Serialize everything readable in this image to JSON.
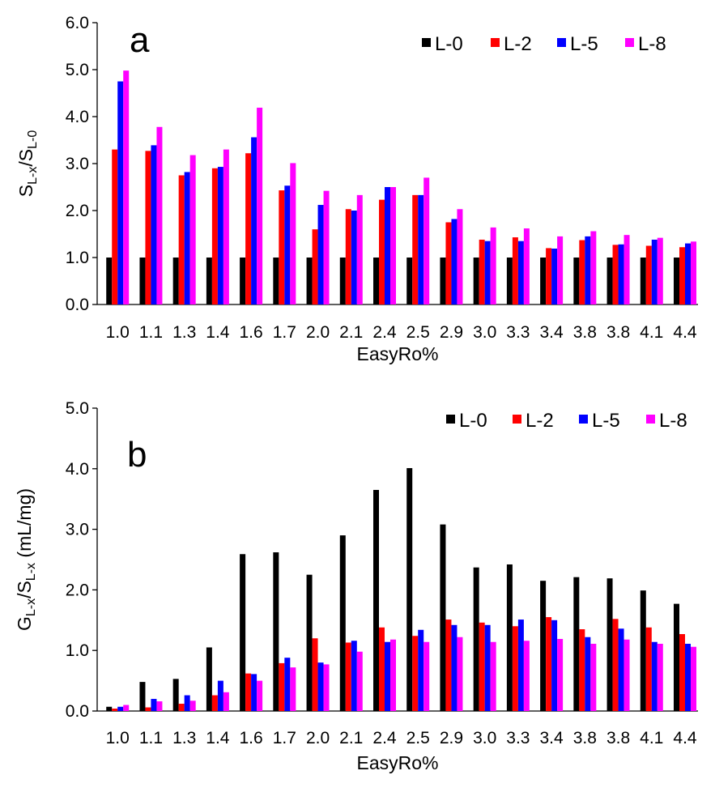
{
  "chart_data": [
    {
      "type": "bar",
      "panel_label": "a",
      "xlabel": "EasyRo%",
      "ylabel": {
        "main": "S",
        "sub1": "L-x",
        "mid": "/S",
        "sub2": "L-0"
      },
      "ylim": [
        0,
        6.0
      ],
      "yticks": [
        "0.0",
        "1.0",
        "2.0",
        "3.0",
        "4.0",
        "5.0",
        "6.0"
      ],
      "categories": [
        "1.0",
        "1.1",
        "1.3",
        "1.4",
        "1.6",
        "1.7",
        "2.0",
        "2.1",
        "2.4",
        "2.5",
        "2.9",
        "3.0",
        "3.3",
        "3.4",
        "3.8",
        "3.8",
        "4.1",
        "4.4"
      ],
      "legend_position": "top-right",
      "series": [
        {
          "name": "L-0",
          "color": "#000000",
          "values": [
            1,
            1,
            1,
            1,
            1,
            1,
            1,
            1,
            1,
            1,
            1,
            1,
            1,
            1,
            1,
            1,
            1,
            1
          ]
        },
        {
          "name": "L-2",
          "color": "#ff0000",
          "values": [
            3.3,
            3.27,
            2.75,
            2.9,
            3.22,
            2.43,
            1.6,
            2.03,
            2.23,
            2.33,
            1.75,
            1.38,
            1.43,
            1.2,
            1.37,
            1.27,
            1.25,
            1.22
          ]
        },
        {
          "name": "L-5",
          "color": "#0000ff",
          "values": [
            4.75,
            3.39,
            2.82,
            2.93,
            3.56,
            2.53,
            2.12,
            2.0,
            2.5,
            2.33,
            1.82,
            1.35,
            1.35,
            1.19,
            1.45,
            1.28,
            1.38,
            1.3
          ]
        },
        {
          "name": "L-8",
          "color": "#ff00ff",
          "values": [
            4.98,
            3.78,
            3.18,
            3.3,
            4.19,
            3.01,
            2.42,
            2.33,
            2.5,
            2.7,
            2.03,
            1.64,
            1.62,
            1.45,
            1.56,
            1.48,
            1.42,
            1.34
          ]
        }
      ]
    },
    {
      "type": "bar",
      "panel_label": "b",
      "xlabel": "EasyRo%",
      "ylabel": {
        "main": "G",
        "sub1": "L-x",
        "mid": "/S",
        "sub2": "L-x",
        "tail": " (mL/mg)"
      },
      "ylim": [
        0,
        5.0
      ],
      "yticks": [
        "0.0",
        "1.0",
        "2.0",
        "3.0",
        "4.0",
        "5.0"
      ],
      "categories": [
        "1.0",
        "1.1",
        "1.3",
        "1.4",
        "1.6",
        "1.7",
        "2.0",
        "2.1",
        "2.4",
        "2.5",
        "2.9",
        "3.0",
        "3.3",
        "3.4",
        "3.8",
        "3.8",
        "4.1",
        "4.4"
      ],
      "legend_position": "top-right",
      "series": [
        {
          "name": "L-0",
          "color": "#000000",
          "values": [
            0.07,
            0.48,
            0.53,
            1.05,
            2.59,
            2.62,
            2.25,
            2.9,
            3.65,
            4.01,
            3.08,
            2.37,
            2.42,
            2.15,
            2.21,
            2.19,
            1.99,
            1.77
          ]
        },
        {
          "name": "L-2",
          "color": "#ff0000",
          "values": [
            0.04,
            0.06,
            0.12,
            0.26,
            0.62,
            0.79,
            1.2,
            1.13,
            1.38,
            1.24,
            1.51,
            1.46,
            1.4,
            1.55,
            1.35,
            1.52,
            1.38,
            1.27
          ]
        },
        {
          "name": "L-5",
          "color": "#0000ff",
          "values": [
            0.07,
            0.2,
            0.26,
            0.5,
            0.61,
            0.88,
            0.8,
            1.16,
            1.14,
            1.34,
            1.42,
            1.42,
            1.51,
            1.5,
            1.22,
            1.36,
            1.14,
            1.11
          ]
        },
        {
          "name": "L-8",
          "color": "#ff00ff",
          "values": [
            0.1,
            0.16,
            0.17,
            0.31,
            0.5,
            0.72,
            0.77,
            0.98,
            1.18,
            1.14,
            1.22,
            1.14,
            1.16,
            1.19,
            1.11,
            1.18,
            1.11,
            1.06
          ]
        }
      ]
    }
  ]
}
